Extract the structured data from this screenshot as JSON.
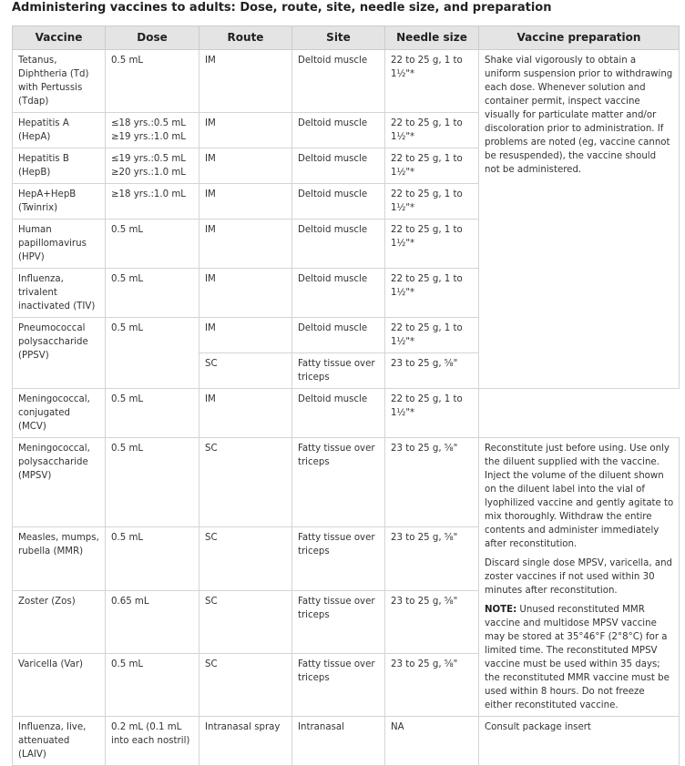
{
  "title": "Administering vaccines to adults: Dose, route, site, needle size, and preparation",
  "headers": [
    "Vaccine",
    "Dose",
    "Route",
    "Site",
    "Needle size",
    "Vaccine preparation"
  ],
  "rows": [
    {
      "vaccine": "Tetanus, Diphtheria (Td) with Pertussis (Tdap)",
      "dose": "0.5 mL",
      "route": "IM",
      "site": "Deltoid muscle",
      "needle": "22 to 25 g, 1 to 1½\"*"
    },
    {
      "vaccine": "Hepatitis A (HepA)",
      "dose": "≤18 yrs.:0.5 mL ≥19 yrs.:1.0 mL",
      "route": "IM",
      "site": "Deltoid muscle",
      "needle": "22 to 25 g, 1 to 1½\"*"
    },
    {
      "vaccine": "Hepatitis B (HepB)",
      "dose": "≤19 yrs.:0.5 mL ≥20 yrs.:1.0 mL",
      "route": "IM",
      "site": "Deltoid muscle",
      "needle": "22 to 25 g, 1 to 1½\"*"
    },
    {
      "vaccine": "HepA+HepB (Twinrix)",
      "dose": "≥18 yrs.:1.0 mL",
      "route": "IM",
      "site": "Deltoid muscle",
      "needle": "22 to 25 g, 1 to 1½\"*"
    },
    {
      "vaccine": "Human papillomavirus (HPV)",
      "dose": "0.5 mL",
      "route": "IM",
      "site": "Deltoid muscle",
      "needle": "22 to 25 g, 1 to 1½\"*"
    },
    {
      "vaccine": "Influenza, trivalent inactivated (TIV)",
      "dose": "0.5 mL",
      "route": "IM",
      "site": "Deltoid muscle",
      "needle": "22 to 25 g, 1 to 1½\"*"
    },
    {
      "vaccine": "Pneumococcal polysaccharide (PPSV)",
      "dose": "0.5 mL",
      "route": "IM",
      "site": "Deltoid muscle",
      "needle": "22 to 25 g, 1 to 1½\"*",
      "route2": "SC",
      "site2": "Fatty tissue over triceps",
      "needle2": "23 to 25 g, ⅝\""
    },
    {
      "vaccine": "Meningococcal, conjugated (MCV)",
      "dose": "0.5 mL",
      "route": "IM",
      "site": "Deltoid muscle",
      "needle": "22 to 25 g, 1 to 1½\"*"
    },
    {
      "vaccine": "Meningococcal, polysaccharide (MPSV)",
      "dose": "0.5 mL",
      "route": "SC",
      "site": "Fatty tissue over triceps",
      "needle": "23 to 25 g, ⅝\""
    },
    {
      "vaccine": "Measles, mumps, rubella (MMR)",
      "dose": "0.5 mL",
      "route": "SC",
      "site": "Fatty tissue over triceps",
      "needle": "23 to 25 g, ⅝\""
    },
    {
      "vaccine": "Zoster (Zos)",
      "dose": "0.65 mL",
      "route": "SC",
      "site": "Fatty tissue over triceps",
      "needle": "23 to 25 g, ⅝\""
    },
    {
      "vaccine": "Varicella (Var)",
      "dose": "0.5 mL",
      "route": "SC",
      "site": "Fatty tissue over triceps",
      "needle": "23 to 25 g, ⅝\""
    },
    {
      "vaccine": "Influenza, live, attenuated (LAIV)",
      "dose": "0.2 mL (0.1 mL into each nostril)",
      "route": "Intranasal spray",
      "site": "Intranasal",
      "needle": "NA"
    }
  ],
  "preparation": {
    "inactivated": "Shake vial vigorously to obtain a uniform suspension prior to withdrawing each dose. Whenever solution and container permit, inspect vaccine visually for particulate matter and/or discoloration prior to administration. If problems are noted (eg, vaccine cannot be resuspended), the vaccine should not be administered.",
    "reconstitute": "Reconstitute just before using. Use only the diluent supplied with the vaccine. Inject the volume of the diluent shown on the diluent label into the vial of lyophilized vaccine and gently agitate to mix thoroughly. Withdraw the entire contents and administer immediately after reconstitution.",
    "discard": "Discard single dose MPSV, varicella, and zoster vaccines if not used within 30 minutes after reconstitution.",
    "note_label": "NOTE:",
    "note": " Unused reconstituted MMR vaccine and multidose MPSV vaccine may be stored at 35°46°F (2°8°C) for a limited time. The reconstituted MPSV vaccine must be used within 35 days; the reconstituted MMR vaccine must be used within 8 hours. Do not freeze either reconstituted vaccine.",
    "laiv": "Consult package insert"
  }
}
